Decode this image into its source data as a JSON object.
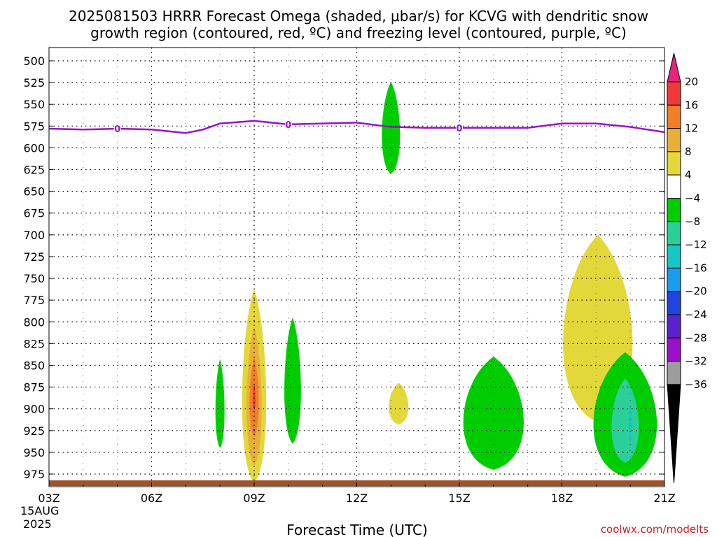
{
  "title_line1": "2025081503 HRRR Forecast Omega (shaded, μbar/s) for KCVG with dendritic snow",
  "title_line2": "growth region (contoured, red, ºC) and freezing level (contoured, purple, ºC)",
  "credit": "coolwx.com/modelts",
  "chart_data": {
    "type": "area",
    "title": "2025081503 HRRR Forecast Omega (shaded, μbar/s) for KCVG with dendritic snow growth region (contoured, red, ºC) and freezing level (contoured, purple, ºC)",
    "xlabel": "Forecast Time (UTC)",
    "ylabel": "",
    "x_range": [
      3,
      21
    ],
    "x_unit": "hour UTC, 15 Aug 2025",
    "x_ticks": [
      "03Z",
      "06Z",
      "09Z",
      "12Z",
      "15Z",
      "18Z",
      "21Z"
    ],
    "x_tick_values": [
      3,
      6,
      9,
      12,
      15,
      18,
      21
    ],
    "date_label": [
      "15AUG",
      "2025"
    ],
    "y_range": [
      490,
      990
    ],
    "y_axis": "pressure (hPa), inverted",
    "y_ticks": [
      500,
      525,
      550,
      575,
      600,
      625,
      650,
      675,
      700,
      725,
      750,
      775,
      800,
      825,
      850,
      875,
      900,
      925,
      950,
      975
    ],
    "grid": true,
    "colorbar": {
      "unit": "μbar/s",
      "labels": [
        "20",
        "16",
        "12",
        "8",
        "4",
        "−4",
        "−8",
        "−12",
        "−16",
        "−20",
        "−24",
        "−28",
        "−32",
        "−36"
      ],
      "colors": [
        "#e8247a",
        "#f03838",
        "#ee7f2b",
        "#e8b03a",
        "#e3d83a",
        "#ffffff",
        "#00cd00",
        "#2bcf9a",
        "#18c6c6",
        "#1a9bee",
        "#2244dd",
        "#5a22cc",
        "#9a11c8",
        "#9c9c9c",
        "#000000"
      ]
    },
    "freezing_level": {
      "label": "0",
      "color": "#9a11c8",
      "x": [
        3.0,
        4.0,
        5.0,
        6.0,
        6.5,
        7.0,
        7.5,
        8.0,
        9.0,
        10.0,
        11.0,
        12.0,
        13.0,
        14.0,
        15.0,
        16.0,
        17.0,
        18.0,
        19.0,
        20.0,
        21.0
      ],
      "y": [
        578,
        579,
        578,
        579,
        581,
        583,
        579,
        572,
        569,
        573,
        572,
        571,
        576,
        577,
        577,
        577,
        577,
        572,
        572,
        576,
        582
      ]
    },
    "omega_regions": [
      {
        "value_range": "4 to 8",
        "color": "#e3d83a",
        "time": [
          8.6,
          9.4
        ],
        "pressure": [
          762,
          985
        ]
      },
      {
        "value_range": "8 to 12",
        "color": "#e8b03a",
        "time": [
          8.75,
          9.25
        ],
        "pressure": [
          805,
          965
        ]
      },
      {
        "value_range": "12 to 16",
        "color": "#ee7f2b",
        "time": [
          8.85,
          9.15
        ],
        "pressure": [
          840,
          932
        ]
      },
      {
        "value_range": "16 to 20",
        "color": "#f03838",
        "time": [
          8.96,
          9.04
        ],
        "pressure": [
          870,
          902
        ]
      },
      {
        "value_range": "-8 to -4",
        "color": "#00cd00",
        "time": [
          7.85,
          8.15
        ],
        "pressure": [
          843,
          945
        ]
      },
      {
        "value_range": "-8 to -4",
        "color": "#00cd00",
        "time": [
          9.85,
          10.4
        ],
        "pressure": [
          795,
          940
        ]
      },
      {
        "value_range": "4 to 8",
        "color": "#e3d83a",
        "time": [
          12.9,
          13.55
        ],
        "pressure": [
          870,
          918
        ]
      },
      {
        "value_range": "-8 to -4",
        "color": "#00cd00",
        "time": [
          12.7,
          13.3
        ],
        "pressure": [
          524,
          630
        ]
      },
      {
        "value_range": "-8 to -4",
        "color": "#00cd00",
        "time": [
          15.0,
          17.0
        ],
        "pressure": [
          840,
          970
        ]
      },
      {
        "value_range": "4 to 8",
        "color": "#e3d83a",
        "time": [
          17.9,
          20.2
        ],
        "pressure": [
          700,
          915
        ]
      },
      {
        "value_range": "-8 to -4",
        "color": "#00cd00",
        "time": [
          18.8,
          20.9
        ],
        "pressure": [
          835,
          978
        ]
      },
      {
        "value_range": "-12 to -8",
        "color": "#2bcf9a",
        "time": [
          19.4,
          20.3
        ],
        "pressure": [
          865,
          962
        ]
      },
      {
        "value_range": "-16 to -12",
        "color": "#18c6c6",
        "time": [
          19.95,
          20.05
        ],
        "pressure": [
          895,
          940
        ]
      }
    ],
    "surface_color": "#a0522d"
  }
}
